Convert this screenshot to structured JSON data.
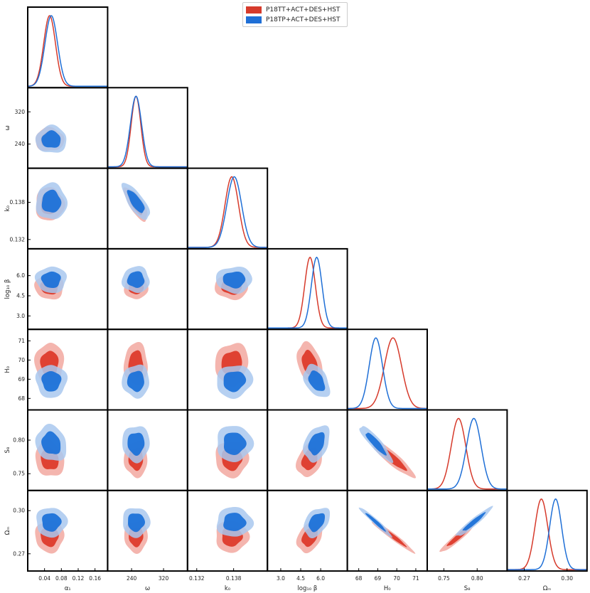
{
  "chart_data": {
    "type": "corner",
    "title": "",
    "series": [
      {
        "name": "P18TT+ACT+DES+HST",
        "color": "#d63a2b",
        "fill_inner": "#dd3b2b",
        "fill_outer": "#f2a8a0"
      },
      {
        "name": "P18TP+ACT+DES+HST",
        "color": "#1f6fd6",
        "fill_inner": "#1e72d8",
        "fill_outer": "#a9c8ee"
      }
    ],
    "params": [
      {
        "name": "alpha1",
        "label": "α₁",
        "range": [
          0.0,
          0.19
        ],
        "ticks": [
          0.04,
          0.08,
          0.12,
          0.16
        ],
        "mean": [
          0.052,
          0.056
        ],
        "sigma": [
          0.014,
          0.015
        ]
      },
      {
        "name": "omega",
        "label": "ω",
        "range": [
          180,
          380
        ],
        "ticks": [
          240,
          320
        ],
        "mean": [
          251,
          251
        ],
        "sigma": [
          12,
          14
        ]
      },
      {
        "name": "k0",
        "label": "k₀",
        "range": [
          0.1305,
          0.1435
        ],
        "ticks": [
          0.132,
          0.138
        ],
        "mean": [
          0.1377,
          0.1381
        ],
        "sigma": [
          0.0011,
          0.0012
        ]
      },
      {
        "name": "log10beta",
        "label": "log₁₀ β",
        "range": [
          2.0,
          8.0
        ],
        "ticks": [
          3.0,
          4.5,
          6.0
        ],
        "mean": [
          5.2,
          5.7
        ],
        "sigma": [
          0.4,
          0.4
        ]
      },
      {
        "name": "H0",
        "label": "H₀",
        "range": [
          67.4,
          71.6
        ],
        "ticks": [
          68,
          69,
          70,
          71
        ],
        "mean": [
          69.8,
          68.9
        ],
        "sigma": [
          0.45,
          0.35
        ]
      },
      {
        "name": "S8",
        "label": "S₈",
        "range": [
          0.725,
          0.845
        ],
        "ticks": [
          0.75,
          0.8
        ],
        "mean": [
          0.772,
          0.795
        ],
        "sigma": [
          0.011,
          0.011
        ]
      },
      {
        "name": "Om",
        "label": "Ωₘ",
        "range": [
          0.258,
          0.314
        ],
        "ticks": [
          0.27,
          0.3
        ],
        "mean": [
          0.282,
          0.292
        ],
        "sigma": [
          0.0045,
          0.0042
        ]
      }
    ],
    "correlations": {
      "omega|k0": -0.75,
      "H0|S8": -0.9,
      "H0|Om": -0.97,
      "S8|Om": 0.95,
      "log10beta|H0": -0.4,
      "log10beta|S8": 0.35,
      "log10beta|Om": 0.4,
      "k0|H0": 0.1,
      "alpha1|S8": -0.15
    },
    "legend_position": "top-center",
    "grid": false
  }
}
